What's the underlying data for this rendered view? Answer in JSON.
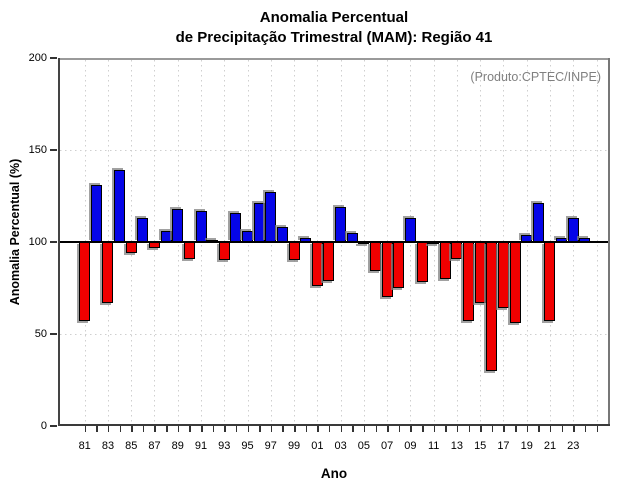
{
  "title": {
    "line1": "Anomalia Percentual",
    "line2": "de Precipitação Trimestral (MAM): Região 41"
  },
  "annotation": "(Produto:CPTEC/INPE)",
  "chart_data": {
    "type": "bar",
    "title": "Anomalia Percentual de Precipitação Trimestral (MAM): Região 41",
    "xlabel": "Ano",
    "ylabel": "Anomalia Percentual (%)",
    "ylim": [
      0,
      200
    ],
    "yticks": [
      "0",
      "50",
      "100",
      "150",
      "200"
    ],
    "baseline": 100,
    "grid": {
      "horizontal_dotted_at": [
        50,
        150
      ],
      "vertical_dotted_at_odd_years": true
    },
    "legend": "none",
    "colors": {
      "above_baseline": "#0505e8",
      "below_baseline": "#f00000"
    },
    "color_rule": "blue if value >= 100 else red",
    "xtick_labels": [
      "81",
      "83",
      "85",
      "87",
      "89",
      "91",
      "93",
      "95",
      "97",
      "99",
      "01",
      "03",
      "05",
      "07",
      "09",
      "11",
      "13",
      "15",
      "17",
      "19",
      "21",
      "23"
    ],
    "x": [
      1981,
      1982,
      1983,
      1984,
      1985,
      1986,
      1987,
      1988,
      1989,
      1990,
      1991,
      1992,
      1993,
      1994,
      1995,
      1996,
      1997,
      1998,
      1999,
      2000,
      2001,
      2002,
      2003,
      2004,
      2005,
      2006,
      2007,
      2008,
      2009,
      2010,
      2011,
      2012,
      2013,
      2014,
      2015,
      2016,
      2017,
      2018,
      2019,
      2020,
      2021,
      2022,
      2023,
      2024
    ],
    "values": [
      57,
      131,
      67,
      139,
      94,
      113,
      97,
      106,
      118,
      91,
      117,
      101,
      90,
      116,
      106,
      121,
      127,
      108,
      90,
      102,
      76,
      79,
      119,
      105,
      99,
      84,
      70,
      75,
      113,
      78,
      99,
      80,
      91,
      57,
      67,
      30,
      64,
      56,
      104,
      121,
      57,
      102,
      113,
      102
    ]
  }
}
